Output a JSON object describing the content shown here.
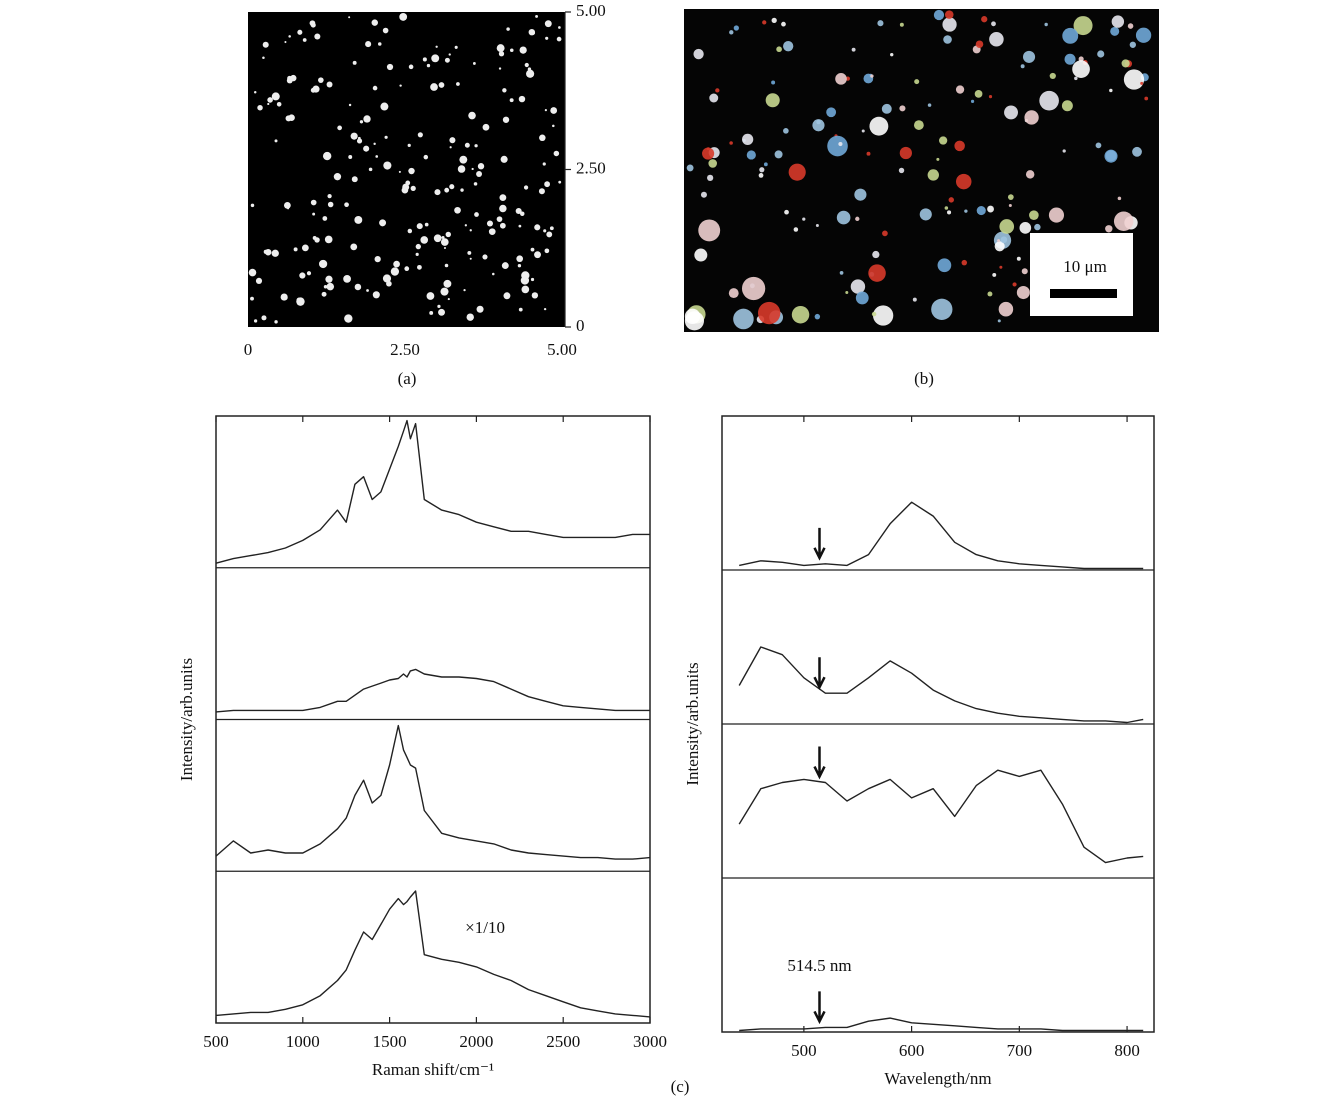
{
  "images": [
    {
      "caption": "(a)",
      "xlim": [
        0,
        5
      ],
      "xticks": [
        0,
        {
          "value": 2.5,
          "label": "2.50"
        },
        {
          "value": 5,
          "label": "5.00"
        }
      ],
      "ylim": [
        0,
        5
      ],
      "yticks": [
        0,
        {
          "value": 2.5,
          "label": "2.50"
        },
        {
          "value": 5,
          "label": "5.00"
        }
      ]
    },
    {
      "caption": "(b)",
      "scale_bar": "10 μm"
    }
  ],
  "caption": "(c)",
  "chart_data": [
    {
      "type": "line",
      "xlabel": "Raman shift/cm⁻¹",
      "ylabel": "Intensity/arb.units",
      "color": "#222",
      "xlim": [
        500,
        3000
      ],
      "xticks": [
        500,
        1000,
        1500,
        2000,
        2500,
        3000
      ],
      "ylim": [
        0,
        100
      ],
      "x": [
        500,
        600,
        700,
        800,
        900,
        1000,
        1100,
        1200,
        1250,
        1300,
        1350,
        1400,
        1450,
        1500,
        1550,
        1580,
        1600,
        1620,
        1650,
        1700,
        1800,
        1900,
        2000,
        2100,
        2200,
        2300,
        2400,
        2500,
        2600,
        2700,
        2800,
        2900,
        3000
      ],
      "series": [
        {
          "values": [
            3,
            6,
            8,
            10,
            13,
            18,
            25,
            38,
            30,
            55,
            60,
            45,
            50,
            65,
            80,
            90,
            97,
            85,
            95,
            45,
            38,
            35,
            30,
            27,
            24,
            24,
            22,
            20,
            20,
            20,
            20,
            22,
            22
          ]
        },
        {
          "values": [
            5,
            6,
            6,
            6,
            6,
            6,
            8,
            12,
            12,
            16,
            20,
            22,
            24,
            26,
            27,
            30,
            28,
            32,
            33,
            30,
            28,
            28,
            27,
            25,
            20,
            15,
            12,
            9,
            8,
            7,
            6,
            6,
            6
          ]
        },
        {
          "values": [
            10,
            20,
            12,
            14,
            12,
            12,
            18,
            28,
            35,
            50,
            60,
            45,
            50,
            70,
            96,
            80,
            75,
            70,
            68,
            40,
            25,
            22,
            20,
            18,
            14,
            12,
            11,
            10,
            9,
            9,
            8,
            8,
            9
          ]
        },
        {
          "values": [
            5,
            6,
            7,
            7,
            9,
            12,
            18,
            28,
            35,
            48,
            60,
            55,
            65,
            75,
            82,
            78,
            80,
            83,
            87,
            45,
            42,
            40,
            37,
            32,
            28,
            22,
            18,
            14,
            10,
            8,
            6,
            5,
            4
          ]
        }
      ],
      "annotations": [
        {
          "text": "×1/10",
          "x": 2050,
          "y": 62,
          "panel": 3
        }
      ]
    },
    {
      "type": "line",
      "xlabel": "Wavelength/nm",
      "ylabel": "Intensity/arb.units",
      "color": "#222",
      "xlim": [
        424,
        825
      ],
      "xticks": [
        500,
        600,
        700,
        800
      ],
      "ylim": [
        0,
        100
      ],
      "arrow_x": 514.5,
      "x": [
        440,
        460,
        480,
        500,
        520,
        540,
        560,
        580,
        600,
        620,
        640,
        660,
        680,
        700,
        720,
        740,
        760,
        780,
        800,
        815
      ],
      "series": [
        {
          "values": [
            3,
            6,
            5,
            3,
            4,
            3,
            10,
            30,
            44,
            35,
            18,
            10,
            6,
            4,
            3,
            2,
            1,
            1,
            1,
            1
          ]
        },
        {
          "values": [
            25,
            50,
            45,
            30,
            20,
            20,
            30,
            41,
            33,
            22,
            15,
            10,
            7,
            5,
            4,
            3,
            2,
            2,
            1,
            3
          ]
        },
        {
          "values": [
            35,
            58,
            62,
            64,
            62,
            50,
            58,
            64,
            52,
            58,
            40,
            60,
            70,
            66,
            70,
            48,
            20,
            10,
            13,
            14
          ]
        },
        {
          "values": [
            1,
            2,
            2,
            2,
            3,
            3,
            7,
            9,
            6,
            5,
            4,
            3,
            2,
            2,
            2,
            1,
            1,
            1,
            1,
            1
          ]
        }
      ],
      "annotations": [
        {
          "text": "514.5 nm",
          "x": 514.5,
          "y": 42,
          "panel": 3
        }
      ]
    }
  ]
}
